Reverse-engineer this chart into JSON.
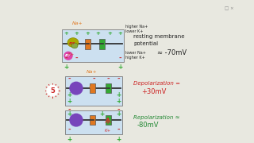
{
  "bg_color": "#e8e8e0",
  "panel_bg": "#cce0f0",
  "panel_border": "#aaaaaa",
  "panel1": {
    "note_text": "resting membrane\npotential",
    "note_value": "≈ -70mV",
    "note_color": "#222222"
  },
  "panel2": {
    "note_text": "Depolarization =",
    "note_value": "+30mV",
    "note_color": "#cc2222",
    "badge": "5"
  },
  "panel3": {
    "note_text": "Repolarization ≈",
    "note_value": "-80mV",
    "note_color": "#228833"
  },
  "colors": {
    "plus_green": "#33aa33",
    "minus_red": "#cc3333",
    "channel_orange": "#e07820",
    "channel_purple": "#7744bb",
    "atpase_yellow": "#aaaa00",
    "atpase_green": "#88aa44",
    "na_label": "#e07820",
    "k_label": "#cc3333",
    "text_dark": "#222222",
    "badge_color": "#cc2222",
    "pink": "#dd44aa"
  }
}
